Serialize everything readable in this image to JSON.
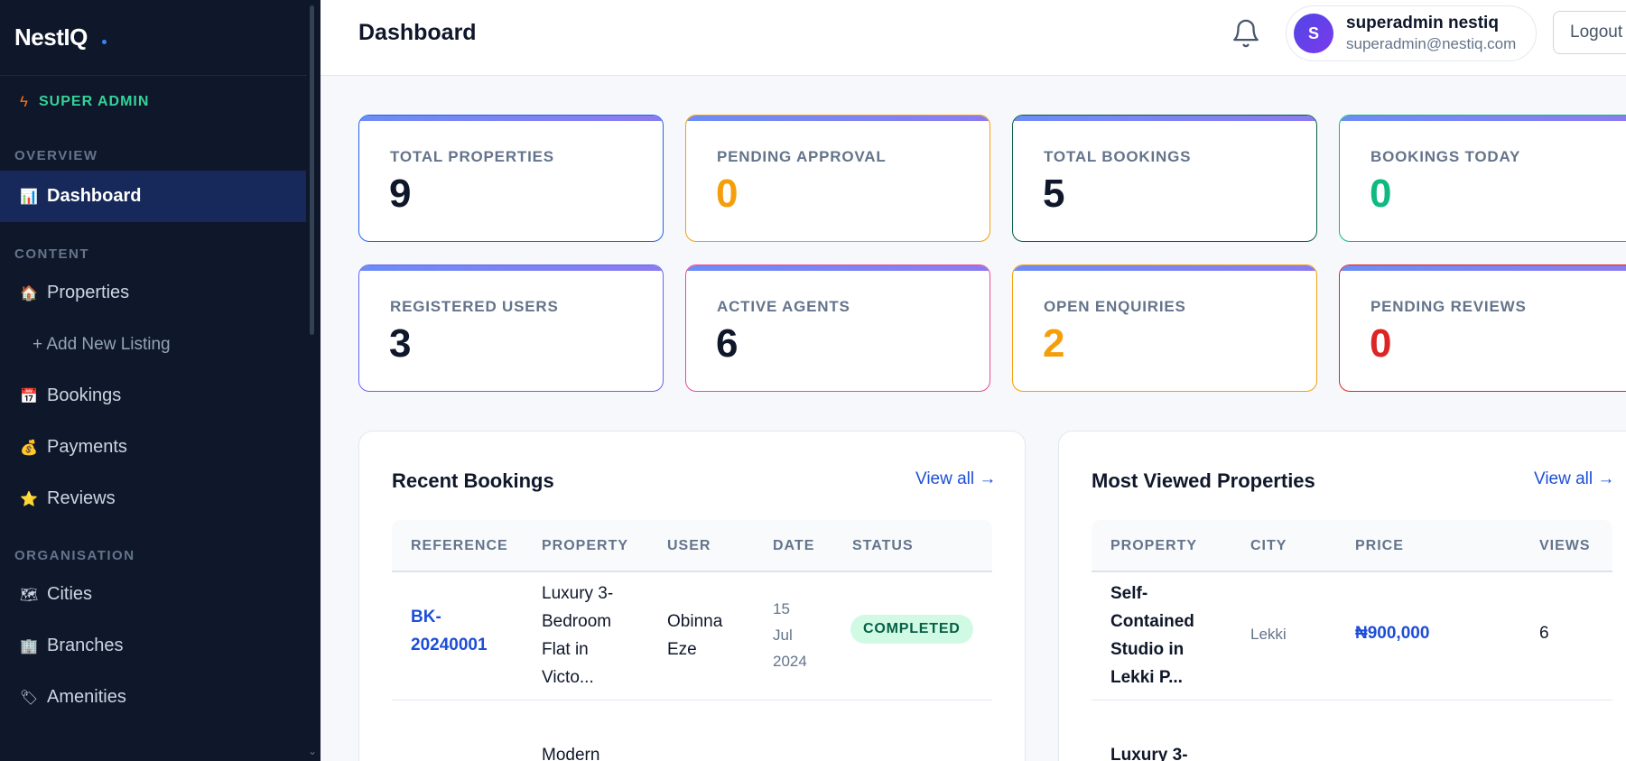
{
  "brand": {
    "name": "NestIQ"
  },
  "sidebar": {
    "role": {
      "icon": "lightning-icon",
      "label": "SUPER ADMIN"
    },
    "sections": [
      {
        "label": "OVERVIEW",
        "items": [
          {
            "icon": "chart-icon",
            "emoji": "📊",
            "label": "Dashboard",
            "active": true
          }
        ]
      },
      {
        "label": "CONTENT",
        "items": [
          {
            "icon": "house-icon",
            "emoji": "🏠",
            "label": "Properties"
          },
          {
            "label": "+ Add New Listing",
            "sub": true
          },
          {
            "icon": "calendar-icon",
            "emoji": "📅",
            "label": "Bookings"
          },
          {
            "icon": "money-bag-icon",
            "emoji": "💰",
            "label": "Payments"
          },
          {
            "icon": "star-icon",
            "emoji": "⭐",
            "label": "Reviews"
          }
        ]
      },
      {
        "label": "ORGANISATION",
        "items": [
          {
            "icon": "map-icon",
            "emoji": "🗺",
            "label": "Cities"
          },
          {
            "icon": "building-icon",
            "emoji": "🏢",
            "label": "Branches"
          },
          {
            "icon": "tag-icon",
            "emoji": "🏷",
            "label": "Amenities"
          }
        ]
      }
    ]
  },
  "header": {
    "title": "Dashboard",
    "user": {
      "initial": "S",
      "name": "superadmin nestiq",
      "email": "superadmin@nestiq.com"
    },
    "logout_label": "Logout"
  },
  "stats": [
    {
      "label": "TOTAL PROPERTIES",
      "value": "9",
      "border": "#2563eb",
      "value_color": "#0f172a"
    },
    {
      "label": "PENDING APPROVAL",
      "value": "0",
      "border": "#f59e0b",
      "value_color": "#f59e0b"
    },
    {
      "label": "TOTAL BOOKINGS",
      "value": "5",
      "border": "#065f46",
      "value_color": "#0f172a"
    },
    {
      "label": "BOOKINGS TODAY",
      "value": "0",
      "border": "#10b981",
      "value_color": "#10b981"
    },
    {
      "label": "REGISTERED USERS",
      "value": "3",
      "border": "#6366f1",
      "value_color": "#0f172a"
    },
    {
      "label": "ACTIVE AGENTS",
      "value": "6",
      "border": "#ec4899",
      "value_color": "#0f172a"
    },
    {
      "label": "OPEN ENQUIRIES",
      "value": "2",
      "border": "#f59e0b",
      "value_color": "#f59e0b"
    },
    {
      "label": "PENDING REVIEWS",
      "value": "0",
      "border": "#dc2626",
      "value_color": "#dc2626"
    }
  ],
  "recent_bookings": {
    "title": "Recent Bookings",
    "view_all": "View all →",
    "columns": [
      "REFERENCE",
      "PROPERTY",
      "USER",
      "DATE",
      "STATUS"
    ],
    "rows": [
      {
        "reference": [
          "BK-",
          "20240001"
        ],
        "property": [
          "Luxury 3-",
          "Bedroom",
          "Flat in",
          "Victo..."
        ],
        "user": [
          "Obinna",
          "Eze"
        ],
        "date": [
          "15",
          "Jul",
          "2024"
        ],
        "status": "COMPLETED"
      }
    ],
    "next_row_property": "Modern"
  },
  "most_viewed": {
    "title": "Most Viewed Properties",
    "view_all": "View all →",
    "columns": [
      "PROPERTY",
      "CITY",
      "PRICE",
      "VIEWS"
    ],
    "rows": [
      {
        "property": [
          "Self-",
          "Contained",
          "Studio in",
          "Lekki P..."
        ],
        "city": "Lekki",
        "price": "₦900,000",
        "views": "6"
      }
    ],
    "next_row_property": "Luxury 3-"
  }
}
